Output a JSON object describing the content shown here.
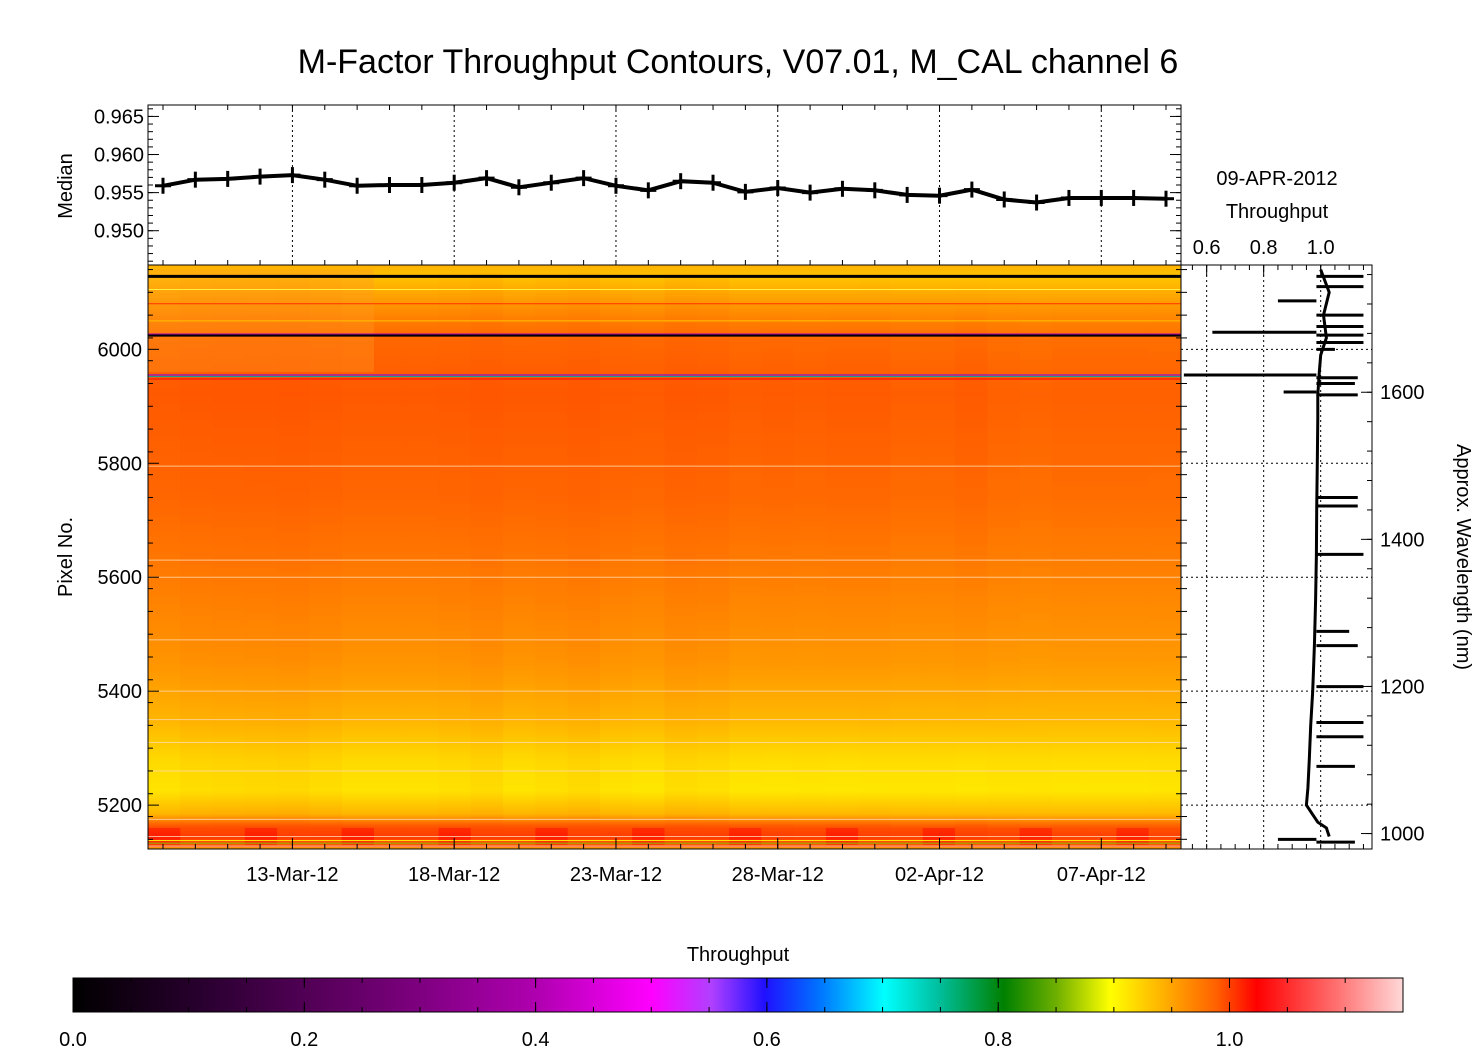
{
  "title": "M-Factor Throughput Contours, V07.01, M_CAL channel 6",
  "median_panel": {
    "ylabel": "Median",
    "y_ticks": [
      "0.965",
      "0.960",
      "0.955",
      "0.950"
    ],
    "y_tick_values": [
      0.965,
      0.96,
      0.955,
      0.95
    ],
    "ylim": [
      0.9455,
      0.9665
    ]
  },
  "contour_panel": {
    "ylabel": "Pixel No.",
    "y_ticks": [
      "6000",
      "5800",
      "5600",
      "5400",
      "5200"
    ],
    "y_tick_values": [
      6000,
      5800,
      5600,
      5400,
      5200
    ],
    "ylim": [
      5123,
      6148
    ],
    "x_ticks": [
      "13-Mar-12",
      "18-Mar-12",
      "23-Mar-12",
      "28-Mar-12",
      "02-Apr-12",
      "07-Apr-12"
    ]
  },
  "side_panel": {
    "date": "09-APR-2012",
    "label": "Throughput",
    "x_ticks": [
      "0.6",
      "0.8",
      "1.0"
    ],
    "x_tick_values": [
      0.6,
      0.8,
      1.0
    ],
    "xlim": [
      0.51,
      1.18
    ],
    "y2_label": "Approx. Wavelength (nm)",
    "y2_ticks": [
      "1600",
      "1400",
      "1200",
      "1000"
    ],
    "y2_tick_values": [
      1600,
      1400,
      1200,
      1000
    ],
    "wavelength_range": [
      979,
      1773
    ]
  },
  "colorbar": {
    "label": "Throughput",
    "ticks": [
      "0.0",
      "0.2",
      "0.4",
      "0.6",
      "0.8",
      "1.0"
    ],
    "tick_values": [
      0.0,
      0.2,
      0.4,
      0.6,
      0.8,
      1.0
    ],
    "range": [
      0.0,
      1.15
    ]
  },
  "chart_data": {
    "type": "line",
    "title": "M-Factor Throughput Contours, V07.01, M_CAL channel 6",
    "series": [
      {
        "name": "Median",
        "x": [
          "09-Mar-12",
          "10-Mar-12",
          "11-Mar-12",
          "12-Mar-12",
          "13-Mar-12",
          "14-Mar-12",
          "15-Mar-12",
          "16-Mar-12",
          "17-Mar-12",
          "18-Mar-12",
          "19-Mar-12",
          "20-Mar-12",
          "21-Mar-12",
          "22-Mar-12",
          "23-Mar-12",
          "24-Mar-12",
          "25-Mar-12",
          "26-Mar-12",
          "27-Mar-12",
          "28-Mar-12",
          "29-Mar-12",
          "30-Mar-12",
          "31-Mar-12",
          "01-Apr-12",
          "02-Apr-12",
          "03-Apr-12",
          "04-Apr-12",
          "05-Apr-12",
          "06-Apr-12",
          "07-Apr-12",
          "08-Apr-12",
          "09-Apr-12"
        ],
        "values": [
          0.9559,
          0.9567,
          0.9568,
          0.9571,
          0.9573,
          0.9567,
          0.9559,
          0.956,
          0.956,
          0.9563,
          0.9569,
          0.9557,
          0.9563,
          0.9569,
          0.9559,
          0.9553,
          0.9565,
          0.9563,
          0.9551,
          0.9556,
          0.955,
          0.9555,
          0.9553,
          0.9547,
          0.9546,
          0.9554,
          0.9541,
          0.9537,
          0.9543,
          0.9543,
          0.9543,
          0.9542
        ]
      }
    ],
    "ylabel": "Median",
    "ylim": [
      0.9455,
      0.9665
    ],
    "colorbar_range": [
      0.0,
      1.15
    ]
  }
}
